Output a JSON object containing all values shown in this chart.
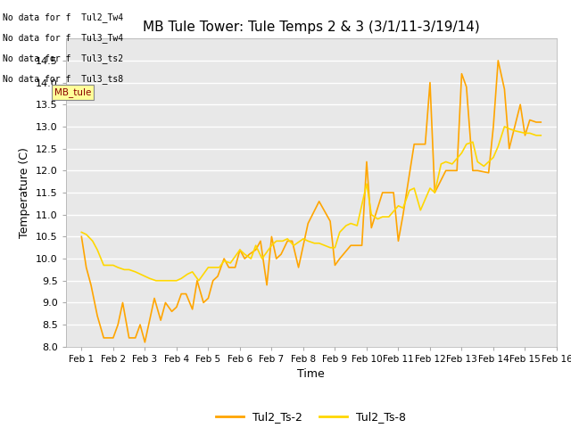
{
  "title": "MB Tule Tower: Tule Temps 2 & 3 (3/1/11-3/19/14)",
  "xlabel": "Time",
  "ylabel": "Temperature (C)",
  "ylim": [
    8.0,
    15.0
  ],
  "yticks": [
    8.0,
    8.5,
    9.0,
    9.5,
    10.0,
    10.5,
    11.0,
    11.5,
    12.0,
    12.5,
    13.0,
    13.5,
    14.0,
    14.5
  ],
  "color_ts2": "#FFA500",
  "color_ts8": "#FFD700",
  "bg_color": "#E8E8E8",
  "legend_labels": [
    "Tul2_Ts-2",
    "Tul2_Ts-8"
  ],
  "no_data_texts": [
    "No data for f  Tul2_Tw4",
    "No data for f  Tul3_Tw4",
    "No data for f  Tul3_ts2",
    "No data for f  Tul3_ts8"
  ],
  "tooltip_text": "MB_tule",
  "ts2_x": [
    1.0,
    1.15,
    1.3,
    1.5,
    1.7,
    1.85,
    2.0,
    2.15,
    2.3,
    2.5,
    2.7,
    2.85,
    3.0,
    3.15,
    3.3,
    3.5,
    3.65,
    3.85,
    4.0,
    4.15,
    4.3,
    4.5,
    4.65,
    4.85,
    5.0,
    5.15,
    5.3,
    5.5,
    5.65,
    5.85,
    6.0,
    6.15,
    6.3,
    6.5,
    6.65,
    6.85,
    7.0,
    7.15,
    7.3,
    7.5,
    7.65,
    7.85,
    8.0,
    8.15,
    8.5,
    8.85,
    9.0,
    9.15,
    9.5,
    9.85,
    10.0,
    10.15,
    10.5,
    10.85,
    11.0,
    11.15,
    11.5,
    11.85,
    12.0,
    12.15,
    12.5,
    12.85,
    13.0,
    13.15,
    13.35,
    13.5,
    13.85,
    14.0,
    14.15,
    14.35,
    14.5,
    14.85,
    15.0,
    15.15,
    15.35,
    15.5
  ],
  "ts2_y": [
    10.5,
    9.8,
    9.4,
    8.7,
    8.2,
    8.2,
    8.2,
    8.5,
    9.0,
    8.2,
    8.2,
    8.5,
    8.1,
    8.6,
    9.1,
    8.6,
    9.0,
    8.8,
    8.9,
    9.2,
    9.2,
    8.85,
    9.5,
    9.0,
    9.1,
    9.5,
    9.6,
    10.0,
    9.8,
    9.8,
    10.2,
    10.0,
    10.1,
    10.2,
    10.4,
    9.4,
    10.5,
    10.0,
    10.1,
    10.4,
    10.4,
    9.8,
    10.3,
    10.8,
    11.3,
    10.85,
    9.85,
    10.0,
    10.3,
    10.3,
    12.2,
    10.7,
    11.5,
    11.5,
    10.4,
    11.0,
    12.6,
    12.6,
    14.0,
    11.5,
    12.0,
    12.0,
    14.2,
    13.9,
    12.0,
    12.0,
    11.95,
    13.0,
    14.5,
    13.85,
    12.5,
    13.5,
    12.8,
    13.15,
    13.1,
    13.1
  ],
  "ts8_x": [
    1.0,
    1.15,
    1.35,
    1.5,
    1.7,
    2.0,
    2.15,
    2.35,
    2.5,
    2.7,
    3.0,
    3.15,
    3.35,
    3.5,
    3.7,
    4.0,
    4.15,
    4.35,
    4.5,
    4.7,
    5.0,
    5.15,
    5.35,
    5.5,
    5.7,
    6.0,
    6.15,
    6.35,
    6.5,
    6.7,
    7.0,
    7.15,
    7.35,
    7.5,
    7.7,
    8.0,
    8.15,
    8.35,
    8.5,
    8.85,
    9.0,
    9.15,
    9.35,
    9.5,
    9.7,
    10.0,
    10.15,
    10.35,
    10.5,
    10.7,
    11.0,
    11.15,
    11.35,
    11.5,
    11.7,
    12.0,
    12.15,
    12.35,
    12.5,
    12.7,
    13.0,
    13.15,
    13.35,
    13.5,
    13.7,
    14.0,
    14.15,
    14.35,
    14.5,
    14.7,
    15.0,
    15.15,
    15.35,
    15.5
  ],
  "ts8_y": [
    10.6,
    10.55,
    10.4,
    10.2,
    9.85,
    9.85,
    9.8,
    9.75,
    9.75,
    9.7,
    9.6,
    9.55,
    9.5,
    9.5,
    9.5,
    9.5,
    9.55,
    9.65,
    9.7,
    9.5,
    9.8,
    9.8,
    9.8,
    9.95,
    9.9,
    10.2,
    10.1,
    10.0,
    10.3,
    10.0,
    10.3,
    10.4,
    10.4,
    10.45,
    10.3,
    10.45,
    10.4,
    10.35,
    10.35,
    10.25,
    10.25,
    10.6,
    10.75,
    10.8,
    10.75,
    11.7,
    11.0,
    10.9,
    10.95,
    10.95,
    11.2,
    11.15,
    11.55,
    11.6,
    11.1,
    11.6,
    11.5,
    12.15,
    12.2,
    12.15,
    12.4,
    12.6,
    12.65,
    12.2,
    12.1,
    12.3,
    12.55,
    13.0,
    12.95,
    12.9,
    12.85,
    12.85,
    12.8,
    12.8
  ]
}
